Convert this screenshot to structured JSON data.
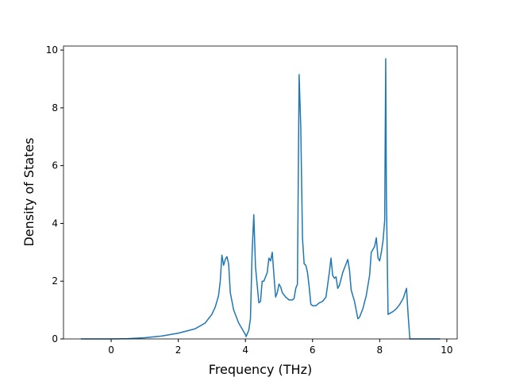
{
  "chart_data": {
    "type": "line",
    "xlabel": "Frequency (THz)",
    "ylabel": "Density of States",
    "xlim": [
      -1.42,
      10.31
    ],
    "ylim": [
      0,
      10.14
    ],
    "xticks": [
      0,
      2,
      4,
      6,
      8,
      10
    ],
    "yticks": [
      0,
      2,
      4,
      6,
      8,
      10
    ],
    "x": [
      -0.9,
      0,
      0.5,
      1,
      1.5,
      2,
      2.5,
      2.8,
      3.0,
      3.1,
      3.2,
      3.25,
      3.3,
      3.35,
      3.4,
      3.45,
      3.5,
      3.55,
      3.65,
      3.8,
      3.95,
      4.0,
      4.02,
      4.1,
      4.15,
      4.2,
      4.25,
      4.3,
      4.4,
      4.45,
      4.5,
      4.55,
      4.65,
      4.7,
      4.75,
      4.8,
      4.85,
      4.9,
      4.95,
      5.0,
      5.05,
      5.1,
      5.2,
      5.3,
      5.4,
      5.45,
      5.5,
      5.55,
      5.6,
      5.65,
      5.7,
      5.75,
      5.8,
      5.85,
      5.9,
      5.95,
      6.0,
      6.1,
      6.2,
      6.3,
      6.4,
      6.5,
      6.55,
      6.6,
      6.65,
      6.7,
      6.75,
      6.8,
      6.9,
      7.0,
      7.05,
      7.1,
      7.15,
      7.25,
      7.3,
      7.35,
      7.4,
      7.5,
      7.6,
      7.7,
      7.75,
      7.85,
      7.9,
      7.95,
      8.0,
      8.05,
      8.1,
      8.15,
      8.18,
      8.2,
      8.25,
      8.4,
      8.5,
      8.6,
      8.7,
      8.8,
      8.85,
      8.9,
      9.8
    ],
    "series": [
      {
        "color": "#1f77b4",
        "values": [
          0,
          0,
          0.01,
          0.04,
          0.1,
          0.2,
          0.35,
          0.55,
          0.85,
          1.1,
          1.5,
          2.0,
          2.9,
          2.55,
          2.75,
          2.85,
          2.6,
          1.6,
          1.0,
          0.55,
          0.25,
          0.15,
          0.08,
          0.3,
          0.7,
          3.0,
          4.3,
          2.5,
          1.25,
          1.3,
          2.0,
          2.0,
          2.3,
          2.8,
          2.7,
          3.0,
          2.2,
          1.45,
          1.6,
          1.9,
          1.8,
          1.6,
          1.45,
          1.35,
          1.35,
          1.4,
          1.75,
          1.9,
          9.15,
          7.3,
          3.5,
          2.6,
          2.55,
          2.3,
          1.8,
          1.2,
          1.15,
          1.15,
          1.25,
          1.3,
          1.45,
          2.3,
          2.8,
          2.2,
          2.1,
          2.15,
          1.75,
          1.85,
          2.3,
          2.6,
          2.75,
          2.4,
          1.7,
          1.3,
          1.0,
          0.7,
          0.75,
          1.05,
          1.5,
          2.2,
          3.0,
          3.2,
          3.5,
          2.8,
          2.7,
          3.0,
          3.4,
          4.1,
          9.7,
          5.0,
          0.85,
          0.95,
          1.05,
          1.2,
          1.4,
          1.75,
          0.8,
          0,
          0
        ]
      }
    ]
  }
}
